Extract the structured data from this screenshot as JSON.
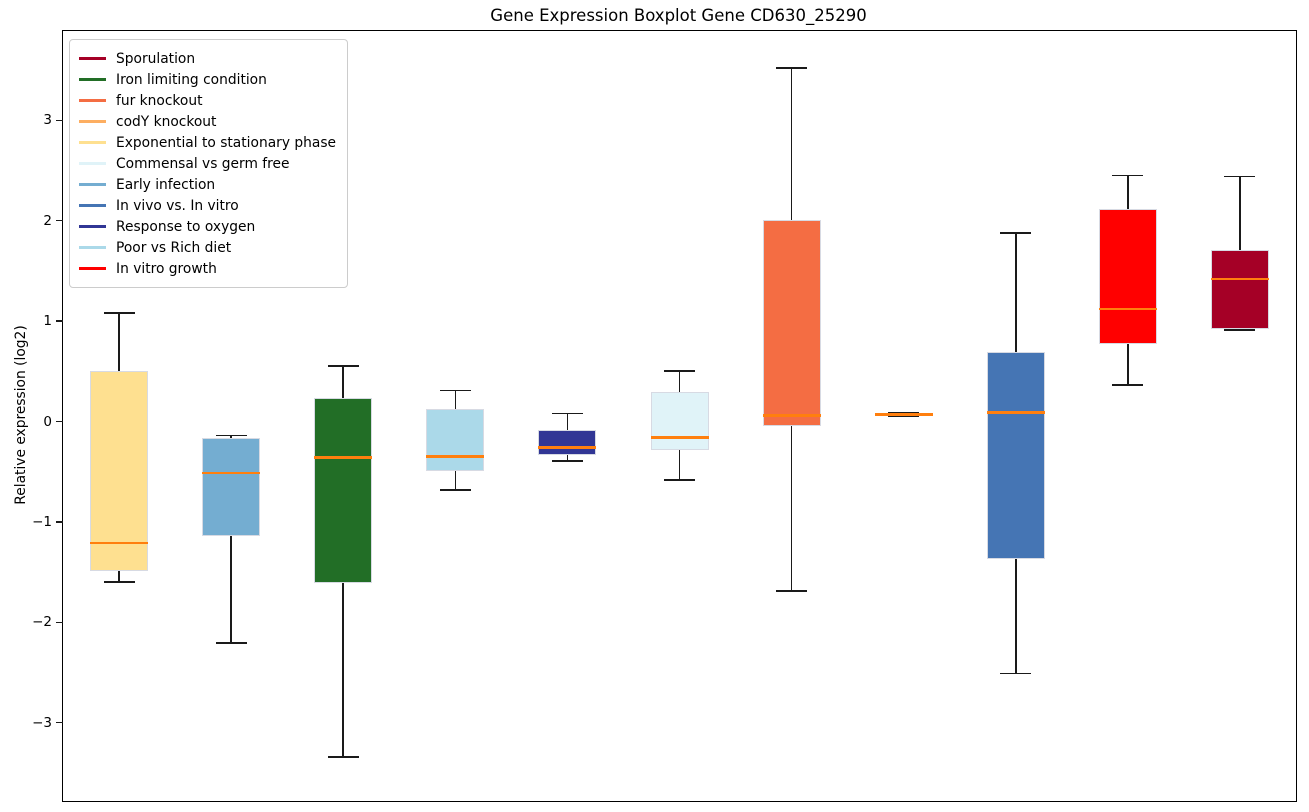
{
  "title": "Gene Expression Boxplot Gene CD630_25290",
  "ylabel": "Relative expression (log2)",
  "yticks": [
    {
      "label": "3",
      "value": 3
    },
    {
      "label": "2",
      "value": 2
    },
    {
      "label": "1",
      "value": 1
    },
    {
      "label": "0",
      "value": 0
    },
    {
      "label": "−1",
      "value": -1
    },
    {
      "label": "−2",
      "value": -2
    },
    {
      "label": "−3",
      "value": -3
    }
  ],
  "chart_data": {
    "type": "boxplot",
    "title": "Gene Expression Boxplot Gene CD630_25290",
    "xlabel": "",
    "ylabel": "Relative expression (log2)",
    "ylim": [
      -3.77,
      3.9
    ],
    "grid": false,
    "legend_position": "upper left",
    "median_color": "#FF7F0E",
    "whisker_color": "#1a1a1a",
    "series": [
      {
        "name": "Exponential to stationary phase",
        "color": "#FEE090",
        "whisker_low": -1.59,
        "q1": -1.48,
        "median": -1.2,
        "q3": 0.51,
        "whisker_high": 1.09
      },
      {
        "name": "Early infection",
        "color": "#74ADD1",
        "whisker_low": -2.2,
        "q1": -1.13,
        "median": -0.5,
        "q3": -0.15,
        "whisker_high": -0.13
      },
      {
        "name": "Iron limiting condition",
        "color": "#226E26",
        "whisker_low": -3.33,
        "q1": -1.6,
        "median": -0.35,
        "q3": 0.24,
        "whisker_high": 0.56
      },
      {
        "name": "Poor vs Rich diet",
        "color": "#ABD9E9",
        "whisker_low": -0.67,
        "q1": -0.48,
        "median": -0.34,
        "q3": 0.13,
        "whisker_high": 0.32
      },
      {
        "name": "Response to oxygen",
        "color": "#313695",
        "whisker_low": -0.38,
        "q1": -0.32,
        "median": -0.25,
        "q3": -0.07,
        "whisker_high": 0.09
      },
      {
        "name": "Commensal vs germ free",
        "color": "#E0F3F8",
        "whisker_low": -0.57,
        "q1": -0.27,
        "median": -0.15,
        "q3": 0.3,
        "whisker_high": 0.51
      },
      {
        "name": "fur knockout",
        "color": "#F46D43",
        "whisker_low": -1.68,
        "q1": -0.03,
        "median": 0.07,
        "q3": 2.02,
        "whisker_high": 3.53
      },
      {
        "name": "codY knockout",
        "color": "#FDAE61",
        "whisker_low": 0.06,
        "q1": 0.07,
        "median": 0.08,
        "q3": 0.09,
        "whisker_high": 0.1
      },
      {
        "name": "In vivo vs. In vitro",
        "color": "#4575B4",
        "whisker_low": -2.5,
        "q1": -1.36,
        "median": 0.1,
        "q3": 0.7,
        "whisker_high": 1.89
      },
      {
        "name": "In vitro growth",
        "color": "#FF0000",
        "whisker_low": 0.37,
        "q1": 0.78,
        "median": 1.13,
        "q3": 2.13,
        "whisker_high": 2.46
      },
      {
        "name": "Sporulation",
        "color": "#A50026",
        "whisker_low": 0.92,
        "q1": 0.93,
        "median": 1.43,
        "q3": 1.72,
        "whisker_high": 2.45
      }
    ],
    "legend": [
      {
        "name": "Sporulation",
        "color": "#A50026"
      },
      {
        "name": "Iron limiting condition",
        "color": "#226E26"
      },
      {
        "name": "fur knockout",
        "color": "#F46D43"
      },
      {
        "name": "codY knockout",
        "color": "#FDAE61"
      },
      {
        "name": "Exponential to stationary phase",
        "color": "#FEE090"
      },
      {
        "name": "Commensal vs germ free",
        "color": "#E0F3F8"
      },
      {
        "name": "Early infection",
        "color": "#74ADD1"
      },
      {
        "name": "In vivo vs. In vitro",
        "color": "#4575B4"
      },
      {
        "name": "Response to oxygen",
        "color": "#313695"
      },
      {
        "name": "Poor vs Rich diet",
        "color": "#ABD9E9"
      },
      {
        "name": "In vitro growth",
        "color": "#FF0000"
      }
    ]
  }
}
